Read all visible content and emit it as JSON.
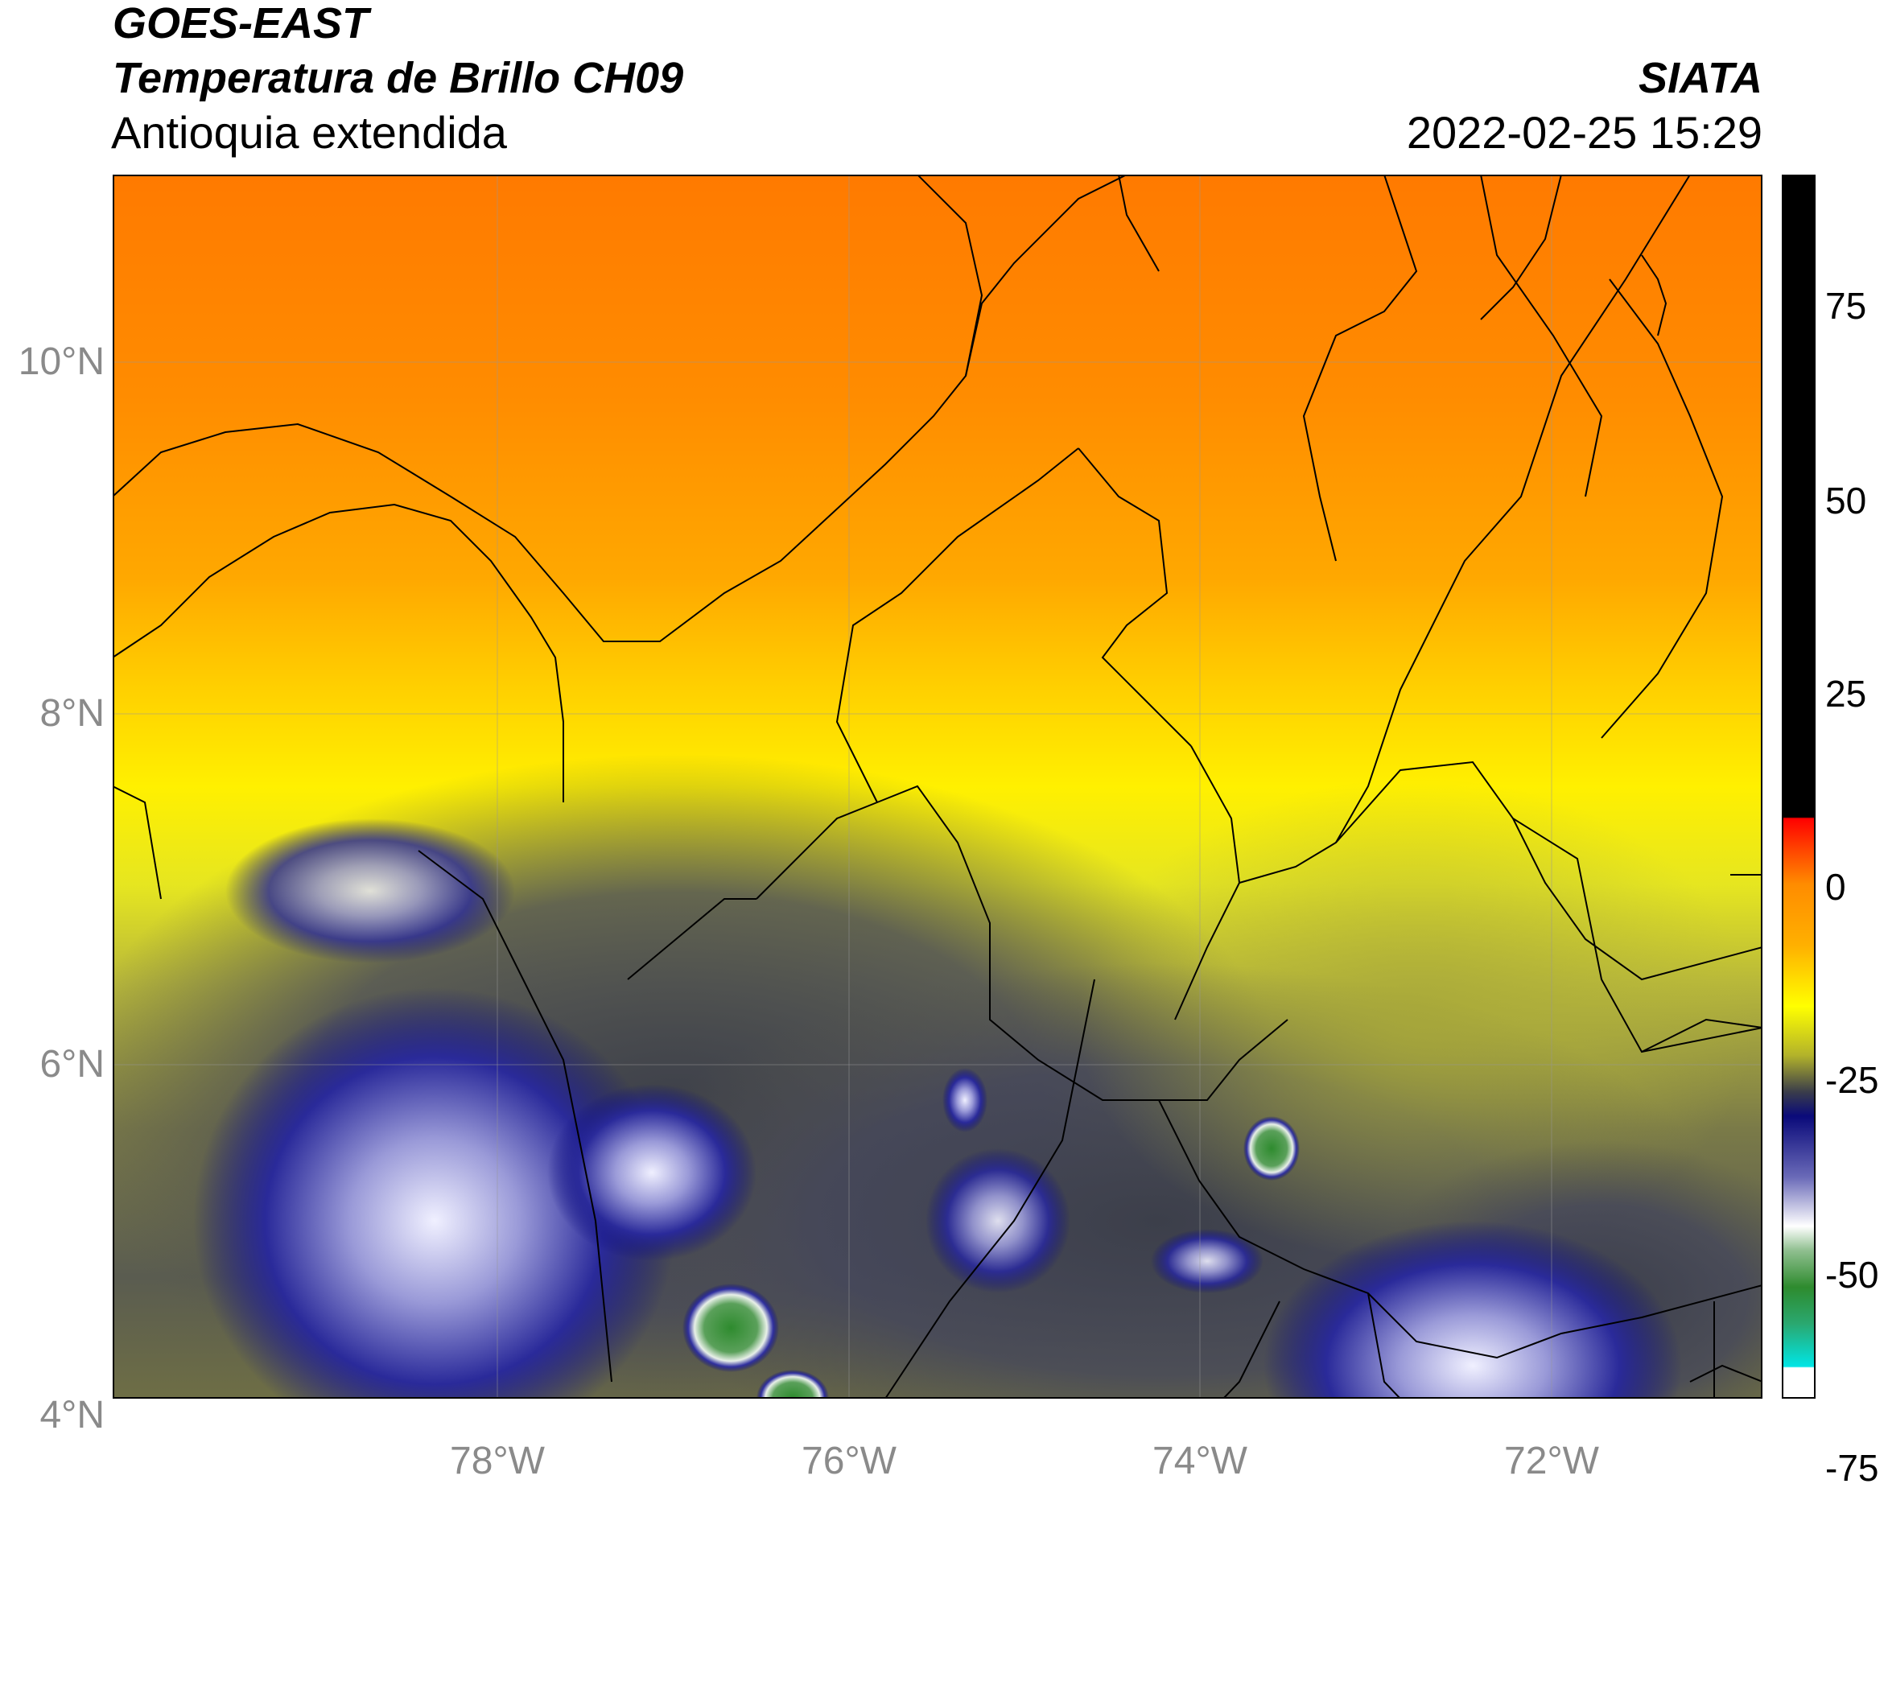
{
  "header": {
    "satellite": "GOES-EAST",
    "product": "Temperatura de Brillo CH09",
    "region": "Antioquia extendida",
    "agency": "SIATA",
    "timestamp": "2022-02-25 15:29"
  },
  "map": {
    "lat_ticks": [
      "10°N",
      "8°N",
      "6°N",
      "4°N"
    ],
    "lon_ticks": [
      "78°W",
      "76°W",
      "74°W",
      "72°W"
    ]
  },
  "colorbar": {
    "ticks": [
      "75",
      "50",
      "25",
      "0",
      "-25",
      "-50",
      "-75"
    ],
    "range": [
      -95,
      92
    ],
    "colors": {
      "black": "#000000",
      "red": "#ff0000",
      "orange": "#ff8c00",
      "yellow": "#ffff00",
      "olive": "#b3b32a",
      "gray": "#3a3d4a",
      "navy": "#0a0a7a",
      "white": "#ffffff",
      "green": "#2e8b2e",
      "cyan": "#00e5e5"
    }
  }
}
